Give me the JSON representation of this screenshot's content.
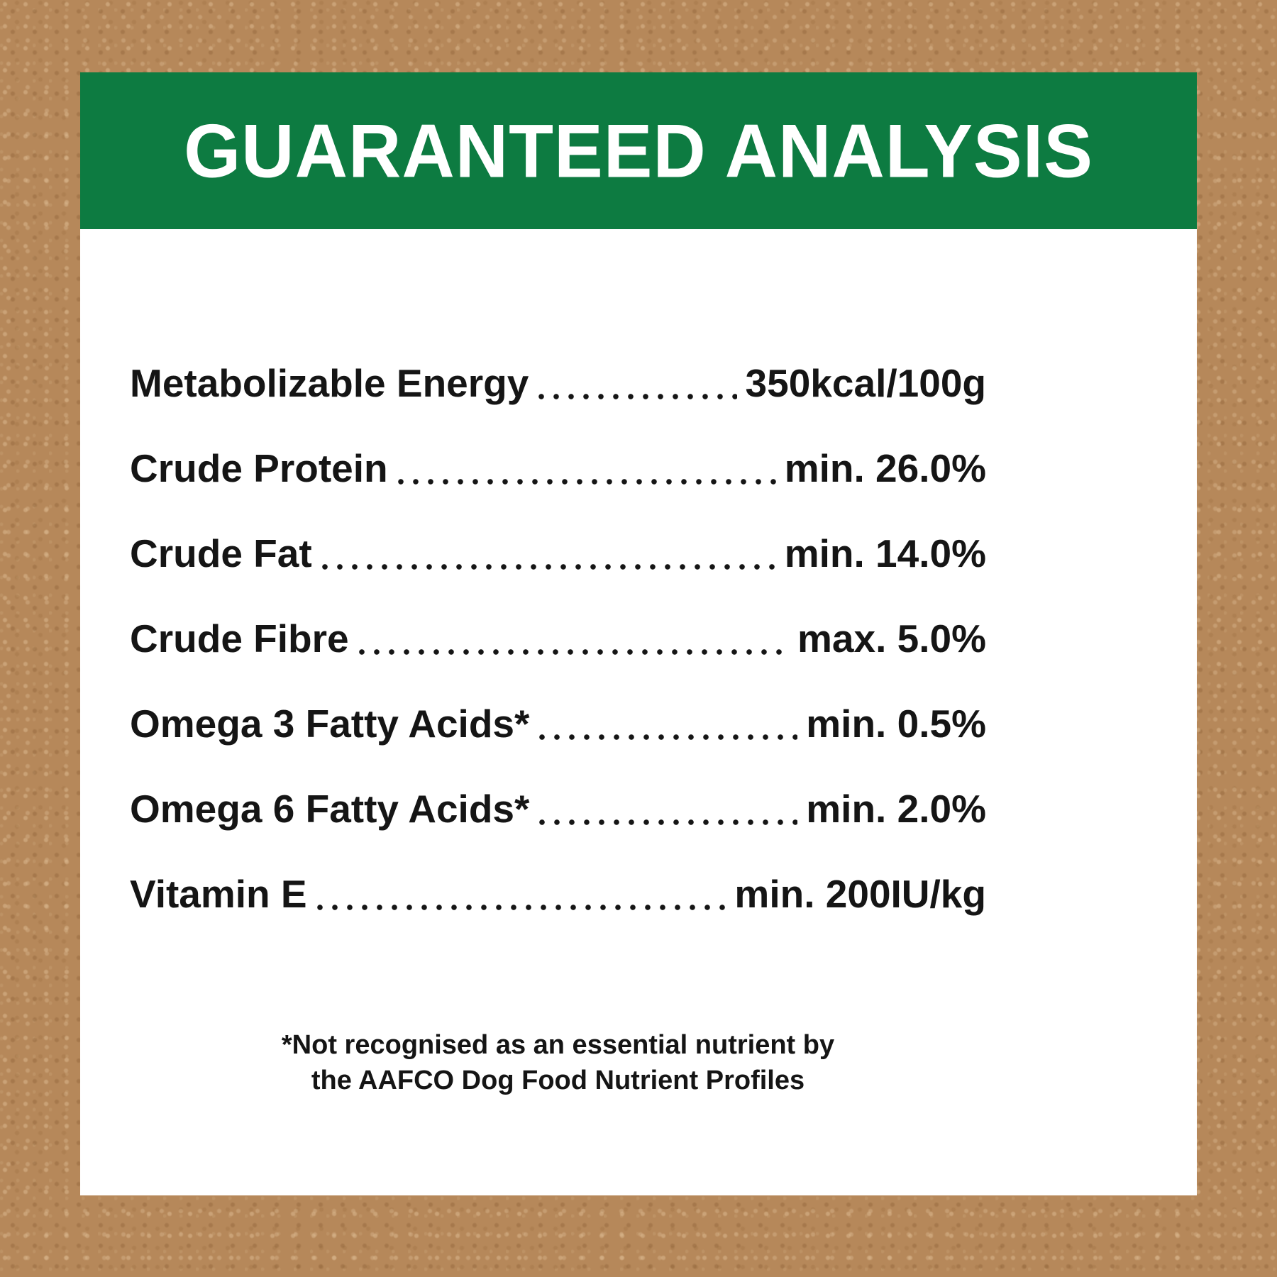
{
  "header": {
    "title": "GUARANTEED ANALYSIS",
    "bg_color": "#0d7b41",
    "text_color": "#ffffff"
  },
  "panel_color": "#ffffff",
  "background_color": "#b6885a",
  "text_color": "#151515",
  "rows": [
    {
      "label": "Metabolizable Energy",
      "value": "350kcal/100g"
    },
    {
      "label": "Crude Protein",
      "value": "min. 26.0%"
    },
    {
      "label": "Crude Fat",
      "value": "min. 14.0%"
    },
    {
      "label": "Crude Fibre",
      "value": "max. 5.0%"
    },
    {
      "label": "Omega 3 Fatty Acids*",
      "value": "min. 0.5%"
    },
    {
      "label": "Omega 6 Fatty Acids*",
      "value": "min. 2.0%"
    },
    {
      "label": "Vitamin E",
      "value": "min. 200IU/kg"
    }
  ],
  "footnote": {
    "line1": "*Not recognised as an essential nutrient by",
    "line2": "the AAFCO Dog Food Nutrient Profiles"
  }
}
